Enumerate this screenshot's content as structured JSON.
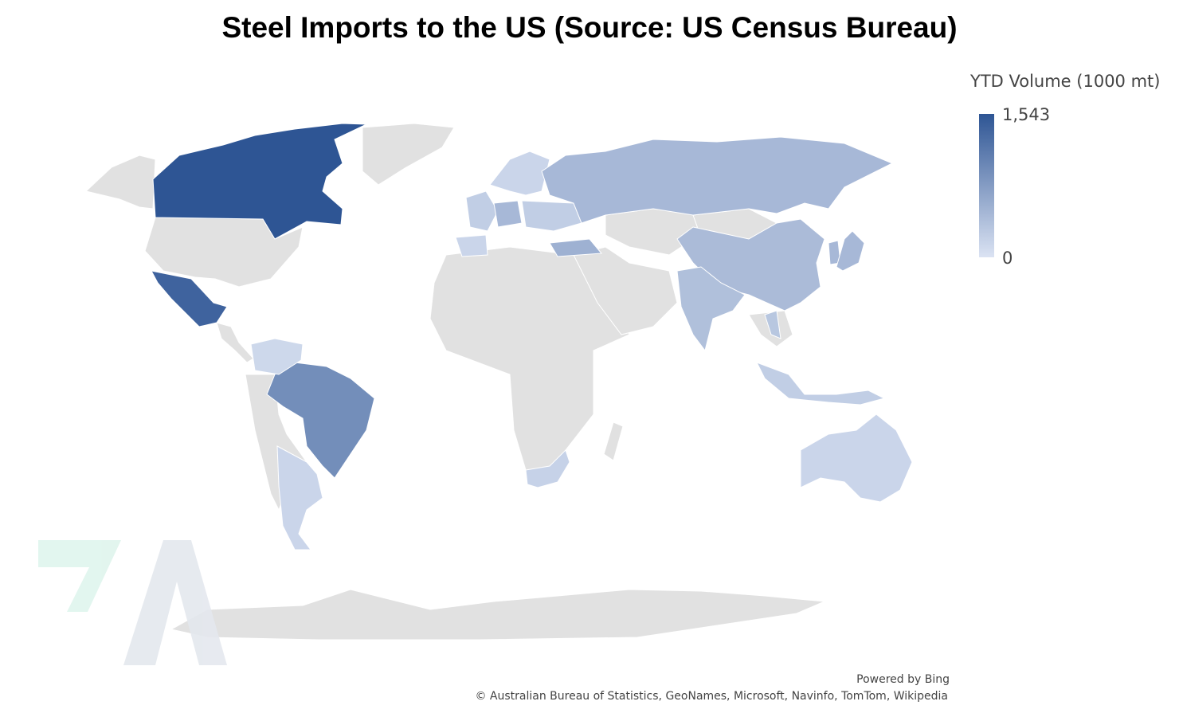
{
  "title": "Steel Imports to the US (Source: US Census Bureau)",
  "legend": {
    "title": "YTD Volume (1000 mt)",
    "max_label": "1,543",
    "min_label": "0",
    "max_value": 1543,
    "min_value": 0,
    "color_high": "#2e5594",
    "color_low": "#dbe3f3"
  },
  "no_data_color": "#e1e1e1",
  "credits": {
    "powered_by": "Powered by Bing",
    "copyright": "© Australian Bureau of Statistics, GeoNames, Microsoft, Navinfo, TomTom, Wikipedia"
  },
  "region_levels": {
    "canada": 1.0,
    "mexico": 0.9,
    "brazil": 0.6,
    "russia": 0.3,
    "china": 0.28,
    "japan": 0.3,
    "korea": 0.3,
    "india": 0.25,
    "turkey": 0.35,
    "germany": 0.3,
    "western_europe": 0.15,
    "iberia": 0.1,
    "nordics": 0.1,
    "eastern_europe": 0.15,
    "vietnam": 0.2,
    "indonesia": 0.15,
    "australia": 0.1,
    "argentina": 0.1,
    "colombia_venezuela": 0.08,
    "south_africa": 0.12
  }
}
